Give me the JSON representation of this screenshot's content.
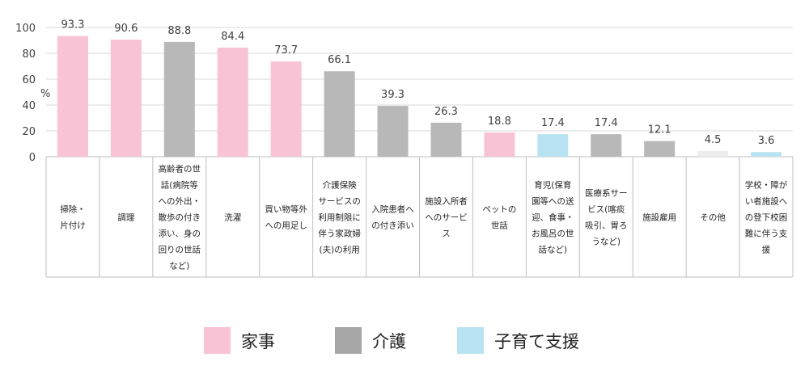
{
  "chart_data": {
    "type": "bar",
    "unit_label": "%",
    "ylim": [
      0,
      100
    ],
    "yticks": [
      0,
      20,
      40,
      60,
      80,
      100
    ],
    "grid": true,
    "legend_position": "bottom-center",
    "categories": [
      [
        "掃除・",
        "片付け"
      ],
      [
        "調理"
      ],
      [
        "高齢者の世",
        "話(病院等",
        "への外出・",
        "散歩の付き",
        "添い、身の",
        "回りの世話",
        "など)"
      ],
      [
        "洗濯"
      ],
      [
        "買い物等外",
        "への用足し"
      ],
      [
        "介護保険",
        "サービスの",
        "利用制限に",
        "伴う家政婦",
        "(夫)の利用"
      ],
      [
        "入院患者へ",
        "の付き添い"
      ],
      [
        "施設入所者",
        "へのサービ",
        "ス"
      ],
      [
        "ペットの",
        "世話"
      ],
      [
        "育児(保育",
        "園等への送",
        "迎、食事・",
        "お風呂の世",
        "話など)"
      ],
      [
        "医療系サー",
        "ビス(喀痰",
        "吸引、胃ろ",
        "うなど)"
      ],
      [
        "施設雇用"
      ],
      [
        "その他"
      ],
      [
        "学校・障が",
        "い者施設へ",
        "の登下校困",
        "難に伴う支",
        "援"
      ]
    ],
    "values": [
      93.3,
      90.6,
      88.8,
      84.4,
      73.7,
      66.1,
      39.3,
      26.3,
      18.8,
      17.4,
      17.4,
      12.1,
      4.5,
      3.6
    ],
    "value_labels": [
      "93.3",
      "90.6",
      "88.8",
      "84.4",
      "73.7",
      "66.1",
      "39.3",
      "26.3",
      "18.8",
      "17.4",
      "17.4",
      "12.1",
      "4.5",
      "3.6"
    ],
    "groups": [
      "housework",
      "housework",
      "care",
      "housework",
      "housework",
      "care",
      "care",
      "care",
      "housework",
      "childcare",
      "care",
      "care",
      "other",
      "childcare"
    ],
    "group_colors": {
      "housework": "#f7c3d5",
      "care": "#b8b8b8",
      "childcare": "#b9e3f3",
      "other": "#eeeeee"
    },
    "legend": [
      {
        "label": "家事",
        "group": "housework",
        "color": "#f7c3d5"
      },
      {
        "label": "介護",
        "group": "care",
        "color": "#a6a6a6"
      },
      {
        "label": "子育て支援",
        "group": "childcare",
        "color": "#b9e3f3"
      }
    ]
  }
}
